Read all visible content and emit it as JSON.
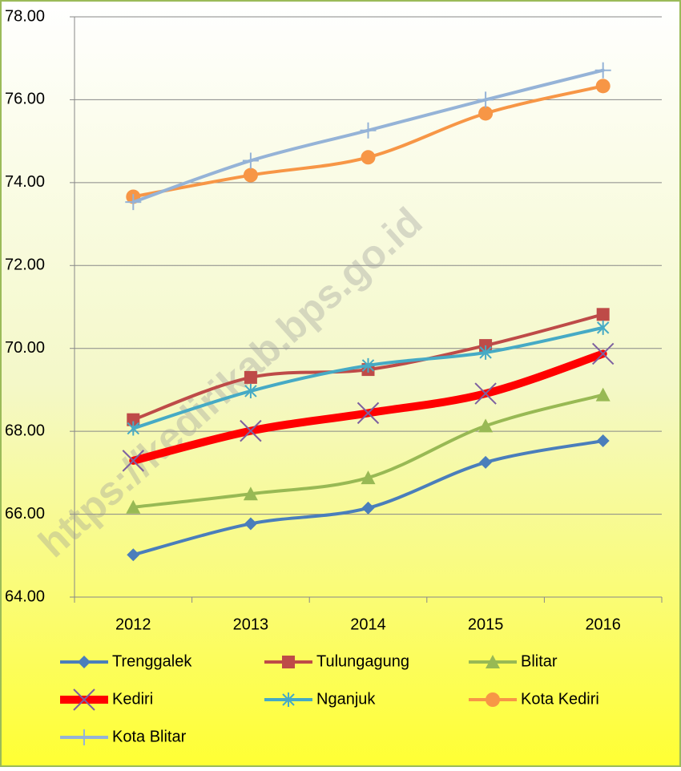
{
  "chart_data": {
    "type": "line",
    "watermark": "https://kedirikab.bps.go.id",
    "categories": [
      "2012",
      "2013",
      "2014",
      "2015",
      "2016"
    ],
    "ylim": [
      64,
      78
    ],
    "yticks": [
      {
        "value": 64,
        "label": "64.00"
      },
      {
        "value": 66,
        "label": "66.00"
      },
      {
        "value": 68,
        "label": "68.00"
      },
      {
        "value": 70,
        "label": "70.00"
      },
      {
        "value": 72,
        "label": "72.00"
      },
      {
        "value": 74,
        "label": "74.00"
      },
      {
        "value": 76,
        "label": "76.00"
      },
      {
        "value": 78,
        "label": "78.00"
      }
    ],
    "grid": true,
    "series": [
      {
        "name": "Trenggalek",
        "color": "#4a7ebb",
        "marker": "diamond",
        "values": [
          65.02,
          65.77,
          66.15,
          67.25,
          67.77
        ]
      },
      {
        "name": "Tulungagung",
        "color": "#be4b48",
        "marker": "square",
        "values": [
          68.28,
          69.3,
          69.49,
          70.07,
          70.82
        ]
      },
      {
        "name": "Blitar",
        "color": "#98b954",
        "marker": "triangle",
        "values": [
          66.17,
          66.49,
          66.88,
          68.13,
          68.88
        ]
      },
      {
        "name": "Kediri",
        "color": "#ff0000",
        "marker": "x",
        "marker_color": "#7d60a0",
        "values": [
          67.29,
          68.01,
          68.44,
          68.91,
          69.87
        ]
      },
      {
        "name": "Nganjuk",
        "color": "#46aac5",
        "marker": "star",
        "values": [
          68.07,
          68.97,
          69.59,
          69.9,
          70.5
        ]
      },
      {
        "name": "Kota Kediri",
        "color": "#f79646",
        "marker": "circle",
        "values": [
          73.66,
          74.18,
          74.61,
          75.67,
          76.33
        ]
      },
      {
        "name": "Kota Blitar",
        "color": "#95b3d7",
        "marker": "plus",
        "values": [
          73.53,
          74.53,
          75.26,
          76.0,
          76.71
        ]
      }
    ]
  }
}
